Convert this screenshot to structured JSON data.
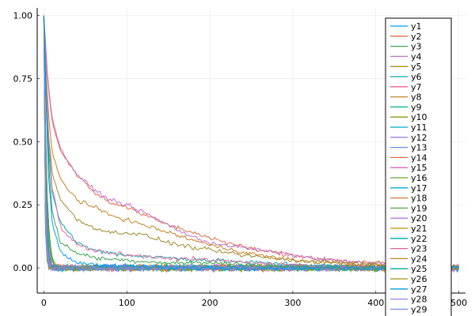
{
  "chart_data": {
    "type": "line",
    "title": "",
    "xlabel": "",
    "ylabel": "",
    "xlim": [
      -8,
      508
    ],
    "ylim": [
      -0.1,
      1.03
    ],
    "x_ticks": [
      0,
      100,
      200,
      300,
      400,
      500
    ],
    "x_tick_labels": [
      "0",
      "100",
      "200",
      "300",
      "400",
      "500"
    ],
    "y_ticks": [
      0.0,
      0.25,
      0.5,
      0.75,
      1.0
    ],
    "y_tick_labels": [
      "0.00",
      "0.25",
      "0.50",
      "0.75",
      "1.00"
    ],
    "grid": true,
    "legend_position": "right",
    "x_range": [
      0,
      500
    ],
    "slow_series": [
      {
        "name": "y2",
        "color": "#e26f46",
        "points": [
          [
            0,
            1.0
          ],
          [
            5,
            0.72
          ],
          [
            10,
            0.58
          ],
          [
            20,
            0.46
          ],
          [
            40,
            0.37
          ],
          [
            60,
            0.3
          ],
          [
            80,
            0.26
          ],
          [
            100,
            0.24
          ],
          [
            120,
            0.21
          ],
          [
            150,
            0.17
          ],
          [
            180,
            0.14
          ],
          [
            200,
            0.12
          ],
          [
            230,
            0.09
          ],
          [
            260,
            0.07
          ],
          [
            300,
            0.05
          ],
          [
            350,
            0.03
          ],
          [
            400,
            0.02
          ],
          [
            450,
            0.01
          ],
          [
            500,
            0.0
          ]
        ]
      },
      {
        "name": "y4",
        "color": "#c271d2",
        "points": [
          [
            0,
            1.0
          ],
          [
            5,
            0.73
          ],
          [
            10,
            0.6
          ],
          [
            20,
            0.47
          ],
          [
            40,
            0.37
          ],
          [
            60,
            0.31
          ],
          [
            80,
            0.27
          ],
          [
            100,
            0.25
          ],
          [
            120,
            0.22
          ],
          [
            150,
            0.17
          ],
          [
            180,
            0.12
          ],
          [
            200,
            0.1
          ],
          [
            240,
            0.08
          ],
          [
            280,
            0.06
          ],
          [
            320,
            0.04
          ],
          [
            380,
            0.02
          ],
          [
            450,
            0.01
          ],
          [
            500,
            0.0
          ]
        ]
      },
      {
        "name": "y8",
        "color": "#c68225",
        "points": [
          [
            0,
            1.0
          ],
          [
            5,
            0.62
          ],
          [
            10,
            0.46
          ],
          [
            20,
            0.35
          ],
          [
            40,
            0.27
          ],
          [
            60,
            0.24
          ],
          [
            80,
            0.21
          ],
          [
            100,
            0.19
          ],
          [
            130,
            0.16
          ],
          [
            160,
            0.13
          ],
          [
            200,
            0.09
          ],
          [
            230,
            0.07
          ],
          [
            260,
            0.05
          ],
          [
            300,
            0.03
          ],
          [
            350,
            0.02
          ],
          [
            400,
            0.01
          ],
          [
            500,
            0.0
          ]
        ]
      },
      {
        "name": "y5",
        "color": "#9e8b2a",
        "points": [
          [
            0,
            1.0
          ],
          [
            5,
            0.55
          ],
          [
            10,
            0.38
          ],
          [
            20,
            0.27
          ],
          [
            40,
            0.19
          ],
          [
            60,
            0.16
          ],
          [
            80,
            0.14
          ],
          [
            100,
            0.14
          ],
          [
            120,
            0.13
          ],
          [
            150,
            0.1
          ],
          [
            180,
            0.08
          ],
          [
            200,
            0.07
          ],
          [
            240,
            0.05
          ],
          [
            300,
            0.03
          ],
          [
            360,
            0.02
          ],
          [
            420,
            0.01
          ],
          [
            500,
            0.0
          ]
        ]
      },
      {
        "name": "y6",
        "color": "#00a9ad",
        "points": [
          [
            0,
            1.0
          ],
          [
            5,
            0.5
          ],
          [
            10,
            0.3
          ],
          [
            20,
            0.18
          ],
          [
            40,
            0.1
          ],
          [
            60,
            0.07
          ],
          [
            80,
            0.06
          ],
          [
            100,
            0.05
          ],
          [
            150,
            0.04
          ],
          [
            200,
            0.03
          ],
          [
            260,
            0.02
          ],
          [
            330,
            0.01
          ],
          [
            400,
            0.0
          ],
          [
            500,
            0.0
          ]
        ]
      },
      {
        "name": "y7",
        "color": "#ec6a9c",
        "points": [
          [
            0,
            1.0
          ],
          [
            5,
            0.55
          ],
          [
            10,
            0.32
          ],
          [
            20,
            0.16
          ],
          [
            40,
            0.09
          ],
          [
            60,
            0.07
          ],
          [
            80,
            0.06
          ],
          [
            100,
            0.05
          ],
          [
            150,
            0.04
          ],
          [
            200,
            0.03
          ],
          [
            250,
            0.02
          ],
          [
            300,
            0.01
          ],
          [
            400,
            0.0
          ],
          [
            500,
            0.0
          ]
        ]
      },
      {
        "name": "y3",
        "color": "#3da44d",
        "points": [
          [
            0,
            1.0
          ],
          [
            5,
            0.45
          ],
          [
            10,
            0.22
          ],
          [
            20,
            0.1
          ],
          [
            40,
            0.06
          ],
          [
            60,
            0.04
          ],
          [
            100,
            0.03
          ],
          [
            150,
            0.02
          ],
          [
            200,
            0.02
          ],
          [
            260,
            0.01
          ],
          [
            320,
            0.0
          ],
          [
            400,
            0.0
          ],
          [
            500,
            0.0
          ]
        ]
      },
      {
        "name": "y1",
        "color": "#009af9",
        "points": [
          [
            0,
            1.0
          ],
          [
            3,
            0.6
          ],
          [
            6,
            0.35
          ],
          [
            10,
            0.18
          ],
          [
            20,
            0.06
          ],
          [
            40,
            0.02
          ],
          [
            80,
            0.01
          ],
          [
            150,
            0.0
          ],
          [
            500,
            0.0
          ]
        ]
      }
    ],
    "fast_series_count": 29,
    "noise_amplitude": 0.018,
    "series": [
      {
        "name": "y1",
        "color": "#009af9"
      },
      {
        "name": "y2",
        "color": "#e26f46"
      },
      {
        "name": "y3",
        "color": "#3da44d"
      },
      {
        "name": "y4",
        "color": "#c271d2"
      },
      {
        "name": "y5",
        "color": "#ac8e18"
      },
      {
        "name": "y6",
        "color": "#00a9ad"
      },
      {
        "name": "y7",
        "color": "#ed5e93"
      },
      {
        "name": "y8",
        "color": "#c68225"
      },
      {
        "name": "y9",
        "color": "#00a98d"
      },
      {
        "name": "y10",
        "color": "#8e971e"
      },
      {
        "name": "y11",
        "color": "#00a8cb"
      },
      {
        "name": "y12",
        "color": "#9b7fe9"
      },
      {
        "name": "y13",
        "color": "#618df6"
      },
      {
        "name": "y14",
        "color": "#f16c4c"
      },
      {
        "name": "y15",
        "color": "#dc63bb"
      },
      {
        "name": "y16",
        "color": "#6c9f33"
      },
      {
        "name": "y17",
        "color": "#00a9e0"
      },
      {
        "name": "y18",
        "color": "#d87a31"
      },
      {
        "name": "y19",
        "color": "#4ea93f"
      },
      {
        "name": "y20",
        "color": "#b476de"
      },
      {
        "name": "y21",
        "color": "#b99400"
      },
      {
        "name": "y22",
        "color": "#00aaa5"
      },
      {
        "name": "y23",
        "color": "#e5629c"
      },
      {
        "name": "y24",
        "color": "#b98920"
      },
      {
        "name": "y25",
        "color": "#00ab9a"
      },
      {
        "name": "y26",
        "color": "#a39314"
      },
      {
        "name": "y27",
        "color": "#009ed3"
      },
      {
        "name": "y28",
        "color": "#a27cf0"
      },
      {
        "name": "y29",
        "color": "#7791f3"
      }
    ]
  }
}
